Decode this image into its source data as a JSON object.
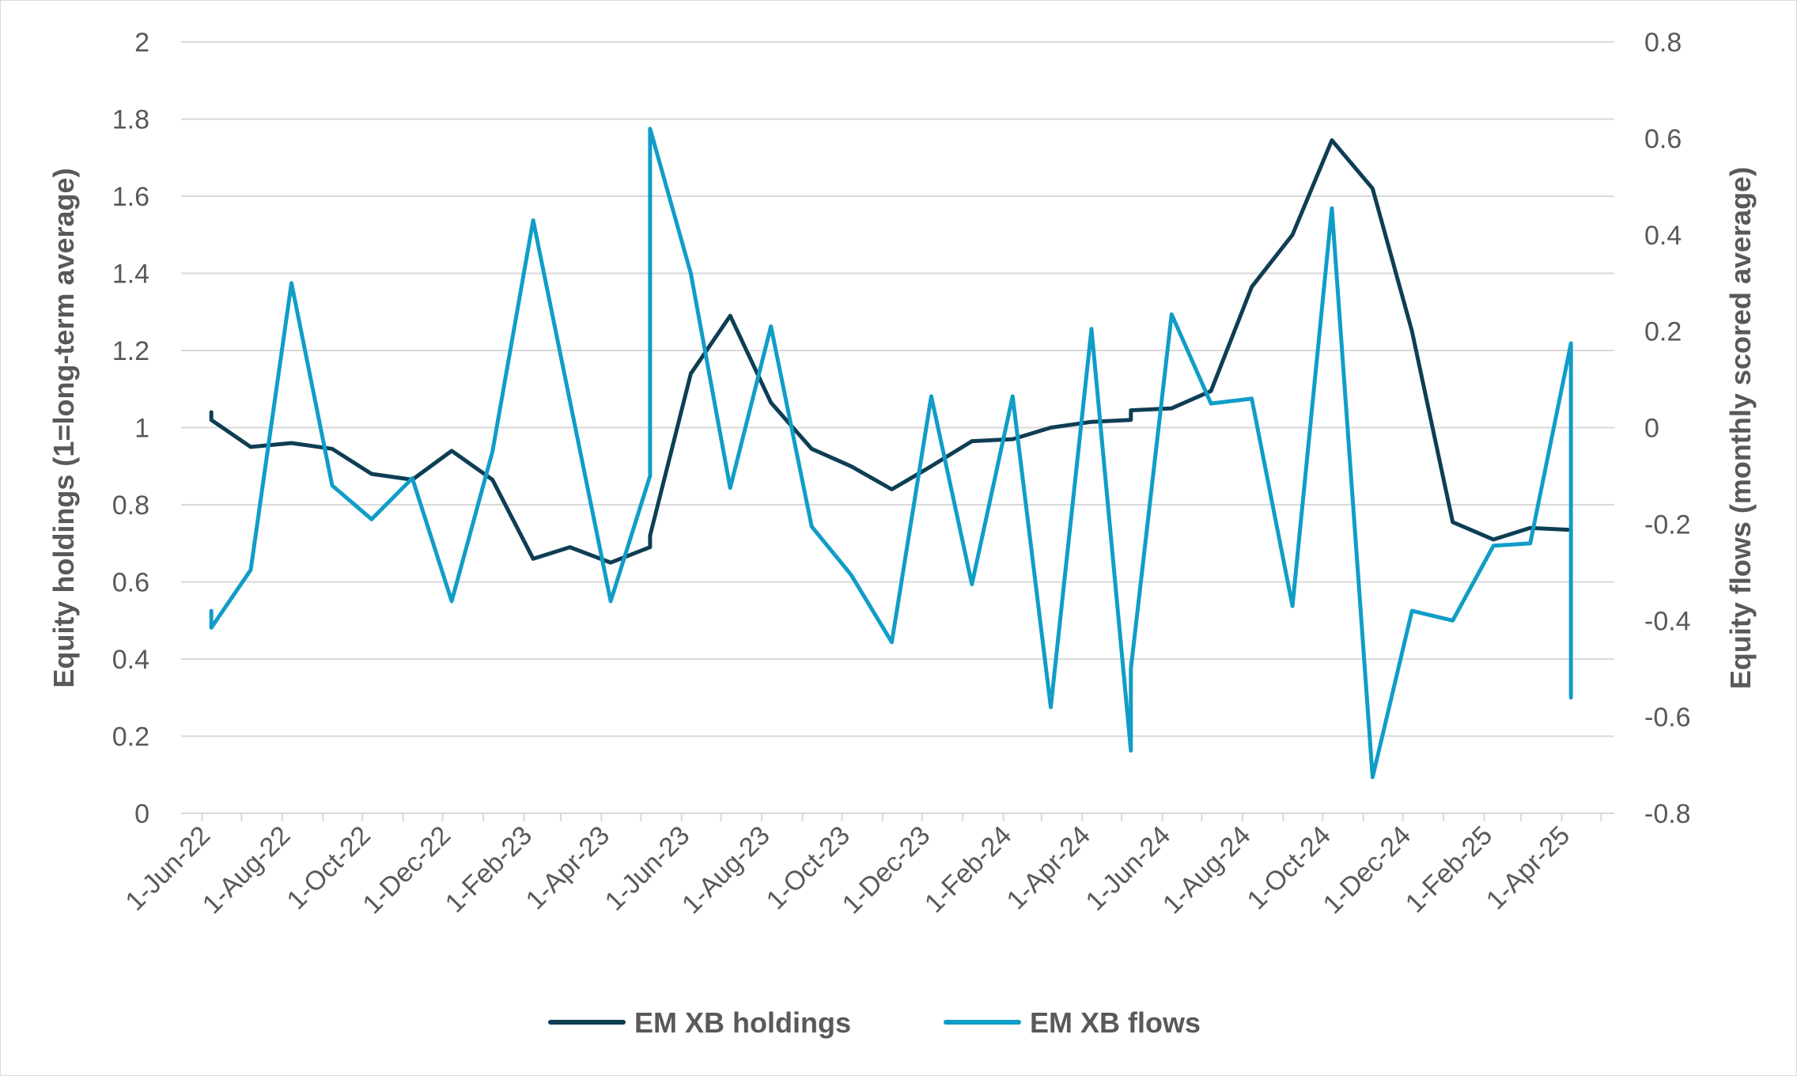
{
  "chart_data": {
    "type": "line",
    "title": "",
    "ylabel": "Equity holdings (1=long-term average)",
    "y2label": "Equity flows (monthly scored average)",
    "ylim": [
      0,
      2
    ],
    "y2lim": [
      -0.8,
      0.8
    ],
    "yticks": [
      "0",
      "0.2",
      "0.4",
      "0.6",
      "0.8",
      "1",
      "1.2",
      "1.4",
      "1.6",
      "1.8",
      "2"
    ],
    "y2ticks": [
      "-0.8",
      "-0.6",
      "-0.4",
      "-0.2",
      "0",
      "0.2",
      "0.4",
      "0.6",
      "0.8"
    ],
    "xlim": [
      "2022-05-16",
      "2025-05-11"
    ],
    "xticks": [
      {
        "date": "2022-06-01",
        "label": "1-Jun-22"
      },
      {
        "date": "2022-08-01",
        "label": "1-Aug-22"
      },
      {
        "date": "2022-10-01",
        "label": "1-Oct-22"
      },
      {
        "date": "2022-12-01",
        "label": "1-Dec-22"
      },
      {
        "date": "2023-02-01",
        "label": "1-Feb-23"
      },
      {
        "date": "2023-04-01",
        "label": "1-Apr-23"
      },
      {
        "date": "2023-06-01",
        "label": "1-Jun-23"
      },
      {
        "date": "2023-08-01",
        "label": "1-Aug-23"
      },
      {
        "date": "2023-10-01",
        "label": "1-Oct-23"
      },
      {
        "date": "2023-12-01",
        "label": "1-Dec-23"
      },
      {
        "date": "2024-02-01",
        "label": "1-Feb-24"
      },
      {
        "date": "2024-04-01",
        "label": "1-Apr-24"
      },
      {
        "date": "2024-06-01",
        "label": "1-Jun-24"
      },
      {
        "date": "2024-08-01",
        "label": "1-Aug-24"
      },
      {
        "date": "2024-10-01",
        "label": "1-Oct-24"
      },
      {
        "date": "2024-12-01",
        "label": "1-Dec-24"
      },
      {
        "date": "2025-02-01",
        "label": "1-Feb-25"
      },
      {
        "date": "2025-04-01",
        "label": "1-Apr-25"
      }
    ],
    "grid": true,
    "legend": "bottom",
    "series": [
      {
        "name": "EM XB holdings",
        "axis": "left",
        "color": "#0e3e54",
        "points": [
          [
            "2022-06-08",
            1.04
          ],
          [
            "2022-06-08",
            1.02
          ],
          [
            "2022-07-08",
            0.95
          ],
          [
            "2022-08-08",
            0.96
          ],
          [
            "2022-09-08",
            0.945
          ],
          [
            "2022-10-08",
            0.88
          ],
          [
            "2022-11-08",
            0.865
          ],
          [
            "2022-12-08",
            0.94
          ],
          [
            "2023-01-08",
            0.865
          ],
          [
            "2023-02-08",
            0.66
          ],
          [
            "2023-03-08",
            0.69
          ],
          [
            "2023-04-08",
            0.65
          ],
          [
            "2023-05-08",
            0.69
          ],
          [
            "2023-05-08",
            0.72
          ],
          [
            "2023-06-08",
            1.14
          ],
          [
            "2023-07-08",
            1.29
          ],
          [
            "2023-08-08",
            1.065
          ],
          [
            "2023-09-08",
            0.945
          ],
          [
            "2023-10-08",
            0.9
          ],
          [
            "2023-11-08",
            0.84
          ],
          [
            "2023-12-08",
            0.9
          ],
          [
            "2024-01-08",
            0.965
          ],
          [
            "2024-02-08",
            0.97
          ],
          [
            "2024-03-08",
            1.0
          ],
          [
            "2024-04-08",
            1.015
          ],
          [
            "2024-05-08",
            1.02
          ],
          [
            "2024-05-08",
            1.045
          ],
          [
            "2024-06-08",
            1.05
          ],
          [
            "2024-07-08",
            1.095
          ],
          [
            "2024-08-08",
            1.365
          ],
          [
            "2024-09-08",
            1.5
          ],
          [
            "2024-10-08",
            1.745
          ],
          [
            "2024-11-08",
            1.62
          ],
          [
            "2024-12-08",
            1.25
          ],
          [
            "2025-01-08",
            0.755
          ],
          [
            "2025-02-08",
            0.71
          ],
          [
            "2025-03-08",
            0.74
          ],
          [
            "2025-04-08",
            0.735
          ],
          [
            "2025-04-08",
            0.735
          ]
        ]
      },
      {
        "name": "EM XB flows",
        "axis": "right",
        "color": "#109dc7",
        "points": [
          [
            "2022-06-08",
            -0.38
          ],
          [
            "2022-06-08",
            -0.415
          ],
          [
            "2022-07-08",
            -0.295
          ],
          [
            "2022-08-08",
            0.3
          ],
          [
            "2022-09-08",
            -0.12
          ],
          [
            "2022-10-08",
            -0.19
          ],
          [
            "2022-11-08",
            -0.105
          ],
          [
            "2022-12-08",
            -0.36
          ],
          [
            "2023-01-08",
            -0.05
          ],
          [
            "2023-02-08",
            0.43
          ],
          [
            "2023-03-08",
            0.055
          ],
          [
            "2023-04-08",
            -0.36
          ],
          [
            "2023-05-08",
            -0.1
          ],
          [
            "2023-05-08",
            0.62
          ],
          [
            "2023-06-08",
            0.32
          ],
          [
            "2023-07-08",
            -0.125
          ],
          [
            "2023-08-08",
            0.21
          ],
          [
            "2023-09-08",
            -0.205
          ],
          [
            "2023-10-08",
            -0.305
          ],
          [
            "2023-11-08",
            -0.445
          ],
          [
            "2023-12-08",
            0.065
          ],
          [
            "2024-01-08",
            -0.325
          ],
          [
            "2024-02-08",
            0.065
          ],
          [
            "2024-03-08",
            -0.58
          ],
          [
            "2024-04-08",
            0.205
          ],
          [
            "2024-05-08",
            -0.67
          ],
          [
            "2024-05-08",
            -0.5
          ],
          [
            "2024-06-08",
            0.235
          ],
          [
            "2024-07-08",
            0.05
          ],
          [
            "2024-08-08",
            0.06
          ],
          [
            "2024-09-08",
            -0.37
          ],
          [
            "2024-10-08",
            0.455
          ],
          [
            "2024-11-08",
            -0.725
          ],
          [
            "2024-12-08",
            -0.38
          ],
          [
            "2025-01-08",
            -0.4
          ],
          [
            "2025-02-08",
            -0.245
          ],
          [
            "2025-03-08",
            -0.24
          ],
          [
            "2025-04-08",
            0.175
          ],
          [
            "2025-04-08",
            -0.56
          ]
        ]
      }
    ]
  }
}
